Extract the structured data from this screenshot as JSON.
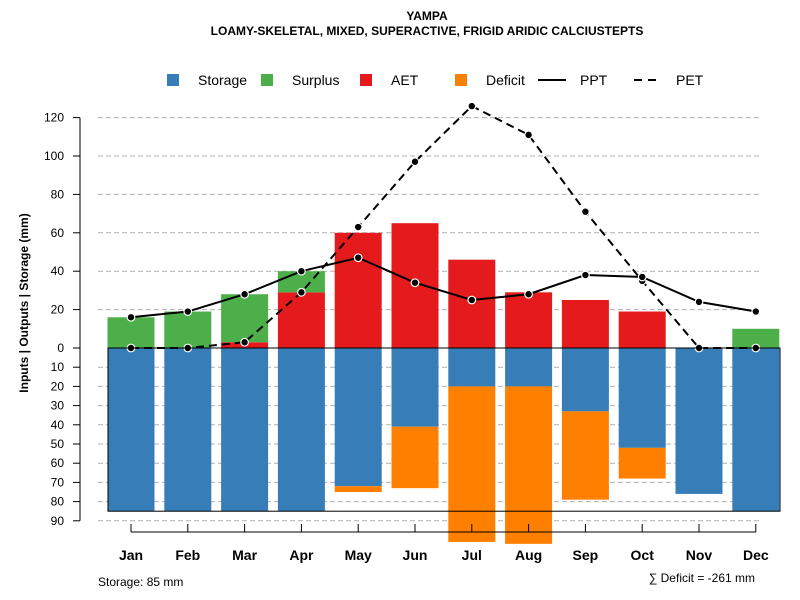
{
  "chart_data": {
    "type": "bar",
    "title": "YAMPA",
    "subtitle": "LOAMY-SKELETAL, MIXED, SUPERACTIVE, FRIGID ARIDIC CALCIUSTEPTS",
    "ylabel": "Inputs | Outputs | Storage    (mm)",
    "categories": [
      "Jan",
      "Feb",
      "Mar",
      "Apr",
      "May",
      "Jun",
      "Jul",
      "Aug",
      "Sep",
      "Oct",
      "Nov",
      "Dec"
    ],
    "ylim_upper": [
      0,
      130
    ],
    "ylim_lower": [
      0,
      90
    ],
    "upper_ticks": [
      "0",
      "20",
      "40",
      "60",
      "80",
      "100",
      "120"
    ],
    "lower_ticks": [
      "0",
      "10",
      "20",
      "30",
      "40",
      "50",
      "60",
      "70",
      "80",
      "90"
    ],
    "legend": [
      {
        "name": "Storage",
        "kind": "box",
        "color": "#377EB8"
      },
      {
        "name": "Surplus",
        "kind": "box",
        "color": "#4DAF4A"
      },
      {
        "name": "AET",
        "kind": "box",
        "color": "#E41A1C"
      },
      {
        "name": "Deficit",
        "kind": "box",
        "color": "#FF7F00"
      },
      {
        "name": "PPT",
        "kind": "solid",
        "color": "#000000"
      },
      {
        "name": "PET",
        "kind": "dashed",
        "color": "#000000"
      }
    ],
    "series": [
      {
        "name": "AET",
        "values": [
          0,
          0,
          3,
          29,
          60,
          65,
          46,
          29,
          25,
          19,
          0,
          0
        ]
      },
      {
        "name": "Surplus",
        "values": [
          16,
          19,
          25,
          11,
          0,
          0,
          0,
          0,
          0,
          0,
          0,
          10
        ]
      },
      {
        "name": "Storage",
        "values": [
          85,
          85,
          85,
          85,
          72,
          41,
          20,
          20,
          33,
          52,
          76,
          85
        ]
      },
      {
        "name": "Deficit",
        "values": [
          0,
          0,
          0,
          0,
          3,
          32,
          81,
          82,
          46,
          16,
          0,
          0
        ]
      },
      {
        "name": "PPT",
        "values": [
          16,
          19,
          28,
          40,
          47,
          34,
          25,
          28,
          38,
          37,
          24,
          19
        ]
      },
      {
        "name": "PET",
        "values": [
          0,
          0,
          3,
          29,
          63,
          97,
          126,
          111,
          71,
          35,
          0,
          0
        ]
      }
    ],
    "storage_capacity": 85,
    "storage_note": "Storage: 85 mm",
    "deficit_note": "∑ Deficit = -261 mm"
  }
}
